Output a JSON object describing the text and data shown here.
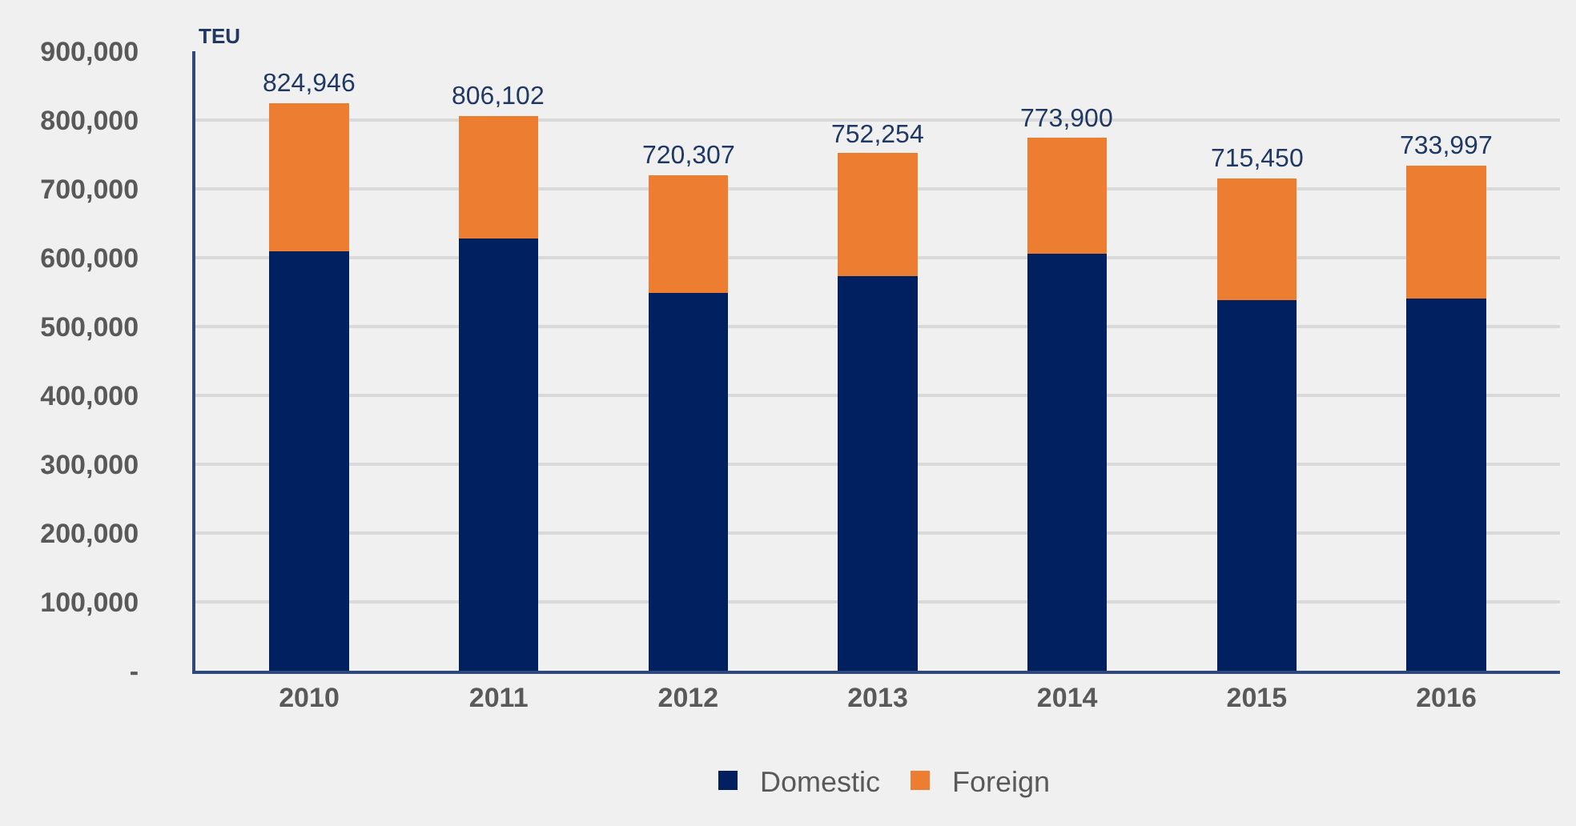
{
  "chart_data": {
    "type": "bar",
    "stacked": true,
    "ylabel": "TEU",
    "categories": [
      "2010",
      "2011",
      "2012",
      "2013",
      "2014",
      "2015",
      "2016"
    ],
    "series": [
      {
        "name": "Domestic",
        "color": "#002060",
        "values": [
          609000,
          628000,
          549000,
          573000,
          606000,
          538000,
          541000
        ]
      },
      {
        "name": "Foreign",
        "color": "#ed7d31",
        "values": [
          215946,
          178102,
          171307,
          179254,
          167900,
          177450,
          192997
        ]
      }
    ],
    "totals": [
      "824,946",
      "806,102",
      "720,307",
      "752,254",
      "773,900",
      "715,450",
      "733,997"
    ],
    "ylim": [
      0,
      900000
    ],
    "yticks": [
      {
        "value": 0,
        "label": "-"
      },
      {
        "value": 100000,
        "label": "100,000"
      },
      {
        "value": 200000,
        "label": "200,000"
      },
      {
        "value": 300000,
        "label": "300,000"
      },
      {
        "value": 400000,
        "label": "400,000"
      },
      {
        "value": 500000,
        "label": "500,000"
      },
      {
        "value": 600000,
        "label": "600,000"
      },
      {
        "value": 700000,
        "label": "700,000"
      },
      {
        "value": 800000,
        "label": "800,000"
      },
      {
        "value": 900000,
        "label": "900,000"
      }
    ],
    "grid": "y",
    "legend": "bottom"
  }
}
